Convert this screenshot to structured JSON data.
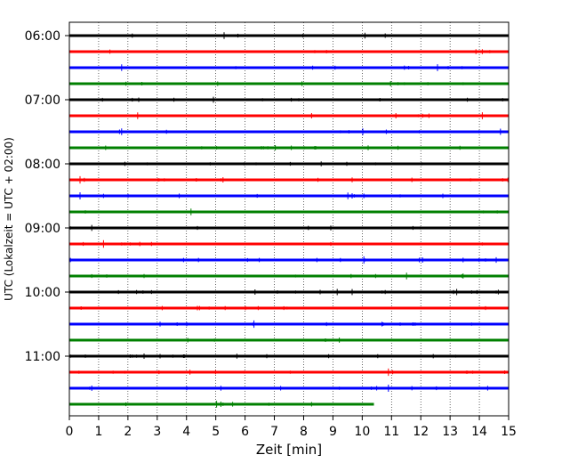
{
  "chart_data": {
    "type": "line",
    "title": "",
    "xlabel": "Zeit  [min]",
    "ylabel": "UTC (Lokalzeit = UTC + 02:00)",
    "xlim": [
      0,
      15
    ],
    "x_ticks": [
      0,
      1,
      2,
      3,
      4,
      5,
      6,
      7,
      8,
      9,
      10,
      11,
      12,
      13,
      14,
      15
    ],
    "x_tick_labels": [
      "0",
      "1",
      "2",
      "3",
      "4",
      "5",
      "6",
      "7",
      "8",
      "9",
      "10",
      "11",
      "12",
      "13",
      "14",
      "15"
    ],
    "y_tick_labels": [
      "06:00",
      "07:00",
      "08:00",
      "09:00",
      "10:00",
      "11:00"
    ],
    "grid": "x-dotted",
    "trace_colors": [
      "#000000",
      "#ff0000",
      "#0000ff",
      "#008000"
    ],
    "traces": [
      {
        "start": "06:00",
        "end_min": 15
      },
      {
        "start": "06:15",
        "end_min": 15
      },
      {
        "start": "06:30",
        "end_min": 15
      },
      {
        "start": "06:45",
        "end_min": 15
      },
      {
        "start": "07:00",
        "end_min": 15
      },
      {
        "start": "07:15",
        "end_min": 15
      },
      {
        "start": "07:30",
        "end_min": 15
      },
      {
        "start": "07:45",
        "end_min": 15
      },
      {
        "start": "08:00",
        "end_min": 15
      },
      {
        "start": "08:15",
        "end_min": 15
      },
      {
        "start": "08:30",
        "end_min": 15
      },
      {
        "start": "08:45",
        "end_min": 15
      },
      {
        "start": "09:00",
        "end_min": 15
      },
      {
        "start": "09:15",
        "end_min": 15
      },
      {
        "start": "09:30",
        "end_min": 15
      },
      {
        "start": "09:45",
        "end_min": 15
      },
      {
        "start": "10:00",
        "end_min": 15
      },
      {
        "start": "10:15",
        "end_min": 15
      },
      {
        "start": "10:30",
        "end_min": 15
      },
      {
        "start": "10:45",
        "end_min": 15
      },
      {
        "start": "11:00",
        "end_min": 15
      },
      {
        "start": "11:15",
        "end_min": 15
      },
      {
        "start": "11:30",
        "end_min": 15
      },
      {
        "start": "11:45",
        "end_min": 10.4
      }
    ]
  }
}
